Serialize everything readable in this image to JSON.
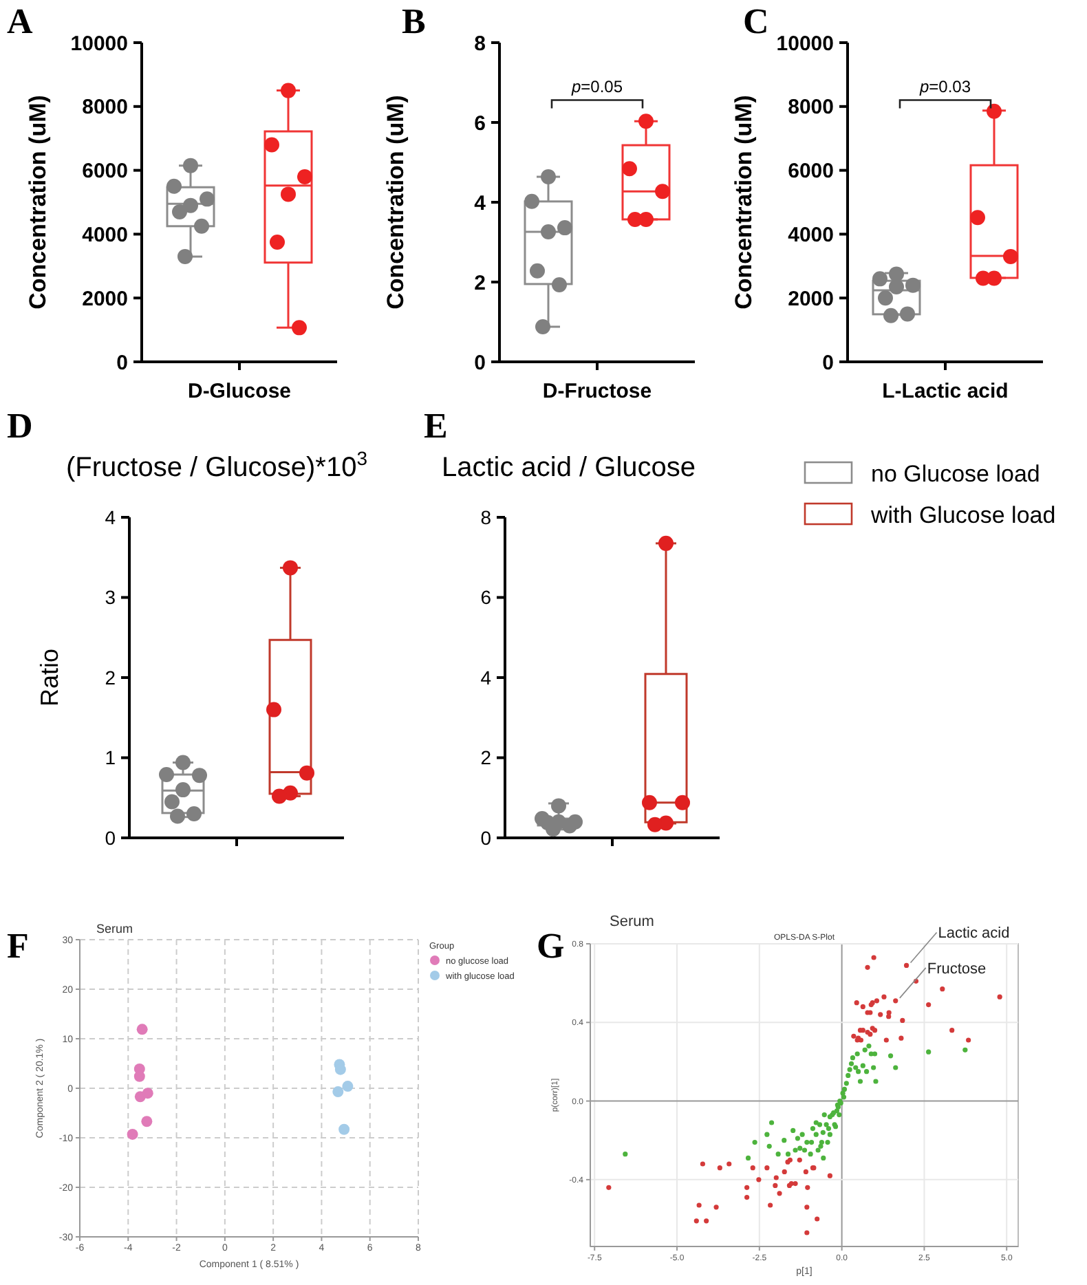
{
  "chart_data": [
    {
      "type": "box",
      "ylabel": "Concentration (uM)",
      "xlabel": "D-Glucose",
      "categories": [
        null,
        null
      ],
      "ylim": [
        0,
        10000
      ],
      "yticks": [
        0,
        2000,
        4000,
        6000,
        8000,
        10000
      ],
      "annotations": [
        "A"
      ],
      "series": [
        {
          "type": "box",
          "color": "#8c8c8c",
          "boxes": [
            {
              "low": 3300,
              "q1": 4250,
              "median": 4950,
              "q3": 5470,
              "high": 6150
            },
            null
          ]
        },
        {
          "type": "box",
          "color": "#f03535",
          "boxes": [
            null,
            {
              "low": 1070,
              "q1": 3110,
              "median": 5520,
              "q3": 7220,
              "high": 8500
            }
          ]
        },
        {
          "type": "scatter",
          "colors": [
            "#808080",
            "#ee2222"
          ],
          "values": [
            6150,
            8500
          ]
        },
        {
          "type": "scatter",
          "colors": [
            "#808080",
            "#ee2222"
          ],
          "values": [
            5500,
            6800
          ]
        },
        {
          "type": "scatter",
          "colors": [
            "#808080",
            "#ee2222"
          ],
          "values": [
            5100,
            5800
          ]
        },
        {
          "type": "scatter",
          "colors": [
            "#808080",
            "#ee2222"
          ],
          "values": [
            4900,
            5250
          ]
        },
        {
          "type": "scatter",
          "colors": [
            "#808080",
            "#ee2222"
          ],
          "values": [
            4700,
            3750
          ]
        },
        {
          "type": "scatter",
          "colors": [
            "#808080",
            "#ee2222"
          ],
          "values": [
            4250,
            1070
          ]
        },
        {
          "type": "scatter",
          "color": "#808080",
          "values": [
            3300,
            null
          ]
        }
      ]
    },
    {
      "type": "box",
      "ylabel": "Concentration (uM)",
      "xlabel": "D-Fructose",
      "categories": [
        null,
        null
      ],
      "ylim": [
        0,
        8
      ],
      "yticks": [
        0,
        2,
        4,
        6,
        8
      ],
      "annotations": [
        "B",
        "p=0.05"
      ],
      "series": [
        {
          "type": "box",
          "color": "#8c8c8c",
          "boxes": [
            {
              "low": 0.88,
              "q1": 1.95,
              "median": 3.26,
              "q3": 4.02,
              "high": 4.64
            },
            null
          ]
        },
        {
          "type": "box",
          "color": "#f03535",
          "boxes": [
            null,
            {
              "low": 3.57,
              "q1": 3.57,
              "median": 4.27,
              "q3": 5.43,
              "high": 6.03
            }
          ]
        },
        {
          "type": "scatter",
          "colors": [
            "#808080",
            "#ee2222"
          ],
          "values": [
            4.64,
            6.03
          ]
        },
        {
          "type": "scatter",
          "colors": [
            "#808080",
            "#ee2222"
          ],
          "values": [
            4.02,
            4.84
          ]
        },
        {
          "type": "scatter",
          "colors": [
            "#808080",
            "#ee2222"
          ],
          "values": [
            3.36,
            4.27
          ]
        },
        {
          "type": "scatter",
          "colors": [
            "#808080",
            "#ee2222"
          ],
          "values": [
            3.26,
            3.57
          ]
        },
        {
          "type": "scatter",
          "colors": [
            "#808080",
            "#ee2222"
          ],
          "values": [
            2.28,
            3.57
          ]
        },
        {
          "type": "scatter",
          "color": "#808080",
          "values": [
            1.93,
            null
          ]
        },
        {
          "type": "scatter",
          "color": "#808080",
          "values": [
            0.88,
            null
          ]
        }
      ]
    },
    {
      "type": "box",
      "ylabel": "Concentration (uM)",
      "xlabel": "L-Lactic acid",
      "categories": [
        null,
        null
      ],
      "ylim": [
        0,
        10000
      ],
      "yticks": [
        0,
        2000,
        4000,
        6000,
        8000,
        10000
      ],
      "annotations": [
        "C",
        "p=0.03"
      ],
      "series": [
        {
          "type": "box",
          "color": "#8c8c8c",
          "boxes": [
            {
              "low": 1470,
              "q1": 1490,
              "median": 2240,
              "q3": 2540,
              "high": 2780
            },
            null
          ]
        },
        {
          "type": "box",
          "color": "#f03535",
          "boxes": [
            null,
            {
              "low": 2630,
              "q1": 2630,
              "median": 3320,
              "q3": 6160,
              "high": 7870
            }
          ]
        },
        {
          "type": "scatter",
          "colors": [
            "#808080",
            "#ee2222"
          ],
          "values": [
            2750,
            7850
          ]
        },
        {
          "type": "scatter",
          "colors": [
            "#808080",
            "#ee2222"
          ],
          "values": [
            2600,
            4520
          ]
        },
        {
          "type": "scatter",
          "colors": [
            "#808080",
            "#ee2222"
          ],
          "values": [
            2400,
            3300
          ]
        },
        {
          "type": "scatter",
          "colors": [
            "#808080",
            "#ee2222"
          ],
          "values": [
            2350,
            2620
          ]
        },
        {
          "type": "scatter",
          "colors": [
            "#808080",
            "#ee2222"
          ],
          "values": [
            2000,
            2620
          ]
        },
        {
          "type": "scatter",
          "color": "#808080",
          "values": [
            1500,
            null
          ]
        },
        {
          "type": "scatter",
          "color": "#808080",
          "values": [
            1450,
            null
          ]
        }
      ]
    },
    {
      "type": "box",
      "title": "(Fructose / Glucose)*10$^{3}$",
      "ylabel": "Ratio",
      "categories": [
        null,
        null
      ],
      "ylim": [
        0,
        4
      ],
      "yticks": [
        0,
        1,
        2,
        3,
        4
      ],
      "annotations": [
        "D"
      ],
      "series": [
        {
          "type": "box",
          "color": "#8c8c8c",
          "boxes": [
            {
              "low": 0.26,
              "q1": 0.31,
              "median": 0.59,
              "q3": 0.79,
              "high": 0.94
            },
            null
          ]
        },
        {
          "type": "box",
          "color": "#c0392b",
          "boxes": [
            null,
            {
              "low": 0.52,
              "q1": 0.55,
              "median": 0.82,
              "q3": 2.47,
              "high": 3.37
            }
          ]
        },
        {
          "type": "scatter",
          "colors": [
            "#808080",
            "#e02020"
          ],
          "values": [
            0.94,
            3.37
          ]
        },
        {
          "type": "scatter",
          "colors": [
            "#808080",
            "#e02020"
          ],
          "values": [
            0.79,
            1.6
          ]
        },
        {
          "type": "scatter",
          "colors": [
            "#808080",
            "#e02020"
          ],
          "values": [
            0.78,
            0.81
          ]
        },
        {
          "type": "scatter",
          "colors": [
            "#808080",
            "#e02020"
          ],
          "values": [
            0.6,
            0.56
          ]
        },
        {
          "type": "scatter",
          "colors": [
            "#808080",
            "#e02020"
          ],
          "values": [
            0.45,
            0.52
          ]
        },
        {
          "type": "scatter",
          "color": "#808080",
          "values": [
            0.3,
            null
          ]
        },
        {
          "type": "scatter",
          "color": "#808080",
          "values": [
            0.27,
            null
          ]
        }
      ]
    },
    {
      "type": "box",
      "title": "Lactic acid / Glucose",
      "categories": [
        null,
        null
      ],
      "ylim": [
        0,
        8
      ],
      "yticks": [
        0,
        2,
        4,
        6,
        8
      ],
      "legend": "right",
      "annotations": [
        "E"
      ],
      "series": [
        {
          "type": "box",
          "name": "no Glucose load",
          "color": "#8c8c8c",
          "boxes": [
            {
              "low": 0.21,
              "q1": 0.31,
              "median": 0.39,
              "q3": 0.48,
              "high": 0.86
            },
            null
          ]
        },
        {
          "type": "box",
          "name": "with Glucose load",
          "color": "#c0392b",
          "boxes": [
            null,
            {
              "low": 0.36,
              "q1": 0.39,
              "median": 0.88,
              "q3": 4.09,
              "high": 7.35
            }
          ]
        },
        {
          "type": "scatter",
          "colors": [
            "#808080",
            "#e02020"
          ],
          "values": [
            0.8,
            7.35
          ]
        },
        {
          "type": "scatter",
          "colors": [
            "#808080",
            "#e02020"
          ],
          "values": [
            0.48,
            0.88
          ]
        },
        {
          "type": "scatter",
          "colors": [
            "#808080",
            "#e02020"
          ],
          "values": [
            0.4,
            0.88
          ]
        },
        {
          "type": "scatter",
          "colors": [
            "#808080",
            "#e02020"
          ],
          "values": [
            0.4,
            0.37
          ]
        },
        {
          "type": "scatter",
          "colors": [
            "#808080",
            "#e02020"
          ],
          "values": [
            0.38,
            0.33
          ]
        },
        {
          "type": "scatter",
          "color": "#808080",
          "values": [
            0.3,
            null
          ]
        },
        {
          "type": "scatter",
          "color": "#808080",
          "values": [
            0.22,
            null
          ]
        }
      ]
    },
    {
      "type": "scatter",
      "title": "Serum",
      "xlabel": "Component 1 ( 8.51% )",
      "ylabel": "Component 2 ( 20.1% )",
      "legend_title": "Group",
      "legend": "right",
      "grid": true,
      "marker": "circle",
      "xlim": [
        -6,
        8
      ],
      "xticks": [
        -6,
        -4,
        -2,
        0,
        2,
        4,
        6,
        8
      ],
      "ylim": [
        -30,
        30
      ],
      "yticks": [
        -30,
        -20,
        -10,
        0,
        10,
        20,
        30
      ],
      "annotations": [
        "F"
      ],
      "series": [
        {
          "name": "no glucose load",
          "color": "#e07bb8",
          "x": [
            -3.42,
            -3.53,
            -3.53,
            -3.5,
            -3.19,
            -3.23,
            -3.82
          ],
          "values": [
            11.9,
            3.9,
            2.4,
            -1.7,
            -1.0,
            -6.7,
            -9.3
          ]
        },
        {
          "name": "with glucose load",
          "color": "#a3cbe8",
          "x": [
            4.74,
            4.78,
            4.68,
            5.08,
            4.93
          ],
          "values": [
            4.8,
            3.8,
            -0.7,
            0.4,
            -8.3
          ]
        }
      ]
    },
    {
      "type": "scatter",
      "title": "Serum",
      "subtitle": "OPLS-DA S-Plot",
      "xlabel": "p[1]",
      "ylabel": "p(corr)[1]",
      "grid": true,
      "marker": "circle",
      "xlim": [
        -7.63,
        5.35
      ],
      "xticks": [
        -7.5,
        {
          "value": -5,
          "label": "-5.0"
        },
        -2.5,
        {
          "value": 0,
          "label": "0.0"
        },
        2.5,
        {
          "value": 5,
          "label": "5.0"
        }
      ],
      "ylim": [
        -0.74,
        0.8
      ],
      "yticks": [
        -0.4,
        {
          "value": 0,
          "label": "0.0"
        },
        0.4,
        0.8
      ],
      "annotations": [
        "G",
        {
          "text": "Lactic acid",
          "x": 1.96,
          "y": 0.69
        },
        {
          "text": "Fructose",
          "x": 1.63,
          "y": 0.51
        }
      ],
      "series": [
        {
          "color": "#d43a3a",
          "x": [
            0.97,
            0.78,
            1.96,
            2.25,
            3.05,
            4.79,
            1.63,
            1.28,
            0.45,
            0.64,
            0.93,
            1.06,
            0.89,
            0.78,
            0.86,
            1.17,
            1.43,
            1.42,
            2.63,
            1.84,
            0.56,
            0.64,
            0.93,
            1.0,
            0.78,
            0.86,
            0.36,
            0.5,
            0.58,
            0.47,
            1.35,
            1.8,
            3.34,
            3.84,
            -7.07,
            -4.22,
            -3.7,
            -3.42,
            -2.88,
            -2.88,
            -2.7,
            -2.52,
            -2.17,
            -2.27,
            -1.99,
            -2.02,
            -1.89,
            -1.74,
            -1.64,
            -1.57,
            -1.59,
            -1.53,
            -1.41,
            -1.28,
            -1.09,
            -1.04,
            -1.06,
            -0.88,
            -0.85,
            -0.36,
            -0.75,
            -1.06,
            -4.41,
            -4.11,
            -3.81,
            -4.33
          ],
          "values": [
            0.73,
            0.68,
            0.69,
            0.61,
            0.57,
            0.53,
            0.51,
            0.53,
            0.5,
            0.48,
            0.5,
            0.51,
            0.49,
            0.45,
            0.45,
            0.44,
            0.45,
            0.43,
            0.49,
            0.41,
            0.36,
            0.36,
            0.37,
            0.36,
            0.35,
            0.34,
            0.33,
            0.32,
            0.31,
            0.31,
            0.31,
            0.32,
            0.36,
            0.31,
            -0.44,
            -0.32,
            -0.34,
            -0.32,
            -0.44,
            -0.49,
            -0.34,
            -0.4,
            -0.53,
            -0.34,
            -0.39,
            -0.43,
            -0.47,
            -0.36,
            -0.31,
            -0.3,
            -0.43,
            -0.42,
            -0.42,
            -0.3,
            -0.36,
            -0.44,
            -0.54,
            -0.34,
            -0.34,
            -0.38,
            -0.6,
            -0.67,
            -0.61,
            -0.61,
            -0.54,
            -0.53
          ]
        },
        {
          "color": "#4db33d",
          "x": [
            -6.57,
            -2.84,
            -2.64,
            -2.2,
            -2.13,
            -2.27,
            -1.93,
            -1.75,
            -1.63,
            -1.48,
            -1.41,
            -1.34,
            -1.2,
            -1.13,
            -1.06,
            -0.92,
            -0.88,
            -0.78,
            -0.72,
            -0.64,
            -0.56,
            -0.47,
            -0.4,
            -0.36,
            -0.29,
            -0.22,
            -0.15,
            -0.08,
            -0.19,
            -0.36,
            -0.53,
            -0.67,
            -0.13,
            -0.06,
            0.03,
            0.08,
            0.14,
            0.19,
            0.24,
            0.29,
            0.33,
            0.42,
            0.47,
            0.5,
            0.56,
            0.64,
            0.7,
            0.75,
            0.82,
            0.89,
            0.96,
            1.03,
            1.0,
            1.48,
            1.63,
            2.63,
            3.74,
            0.06,
            -0.03,
            -0.11,
            -0.25,
            -0.43,
            -0.95,
            -1.27,
            -0.61,
            -0.78,
            -0.57
          ],
          "values": [
            -0.27,
            -0.29,
            -0.21,
            -0.23,
            -0.11,
            -0.17,
            -0.27,
            -0.2,
            -0.27,
            -0.15,
            -0.25,
            -0.19,
            -0.17,
            -0.25,
            -0.21,
            -0.21,
            -0.14,
            -0.17,
            -0.25,
            -0.23,
            -0.29,
            -0.12,
            -0.14,
            -0.17,
            -0.07,
            -0.12,
            -0.05,
            -0.07,
            -0.13,
            -0.08,
            -0.07,
            -0.12,
            -0.02,
            0.0,
            0.04,
            0.06,
            0.09,
            0.13,
            0.16,
            0.19,
            0.22,
            0.17,
            0.24,
            0.15,
            0.1,
            0.18,
            0.26,
            0.15,
            0.28,
            0.24,
            0.17,
            0.1,
            0.24,
            0.23,
            0.17,
            0.25,
            0.26,
            0.02,
            -0.01,
            -0.03,
            -0.06,
            -0.21,
            -0.27,
            -0.24,
            -0.21,
            -0.11,
            -0.16
          ]
        }
      ]
    }
  ]
}
